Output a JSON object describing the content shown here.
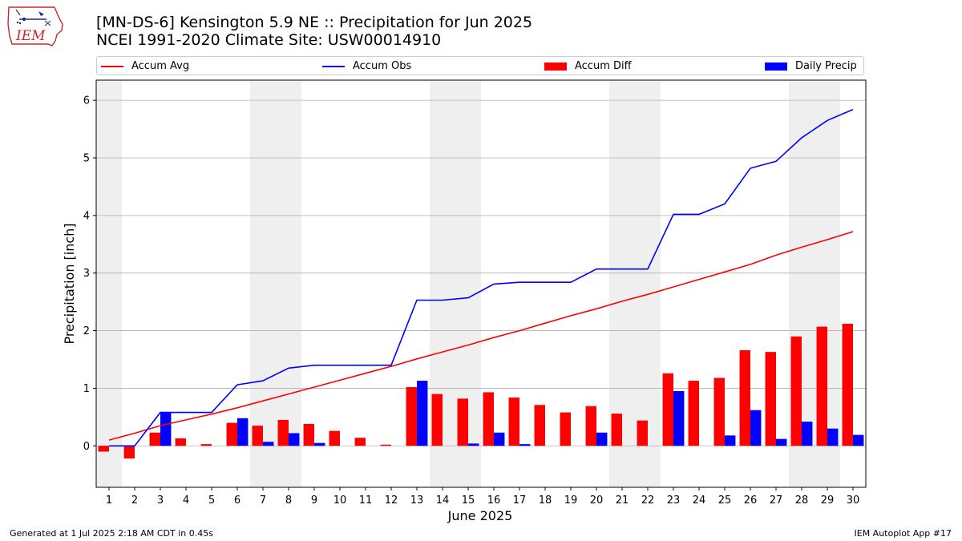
{
  "header": {
    "title_line1": "[MN-DS-6] Kensington 5.9 NE :: Precipitation for Jun 2025",
    "title_line2": "NCEI 1991-2020 Climate Site: USW00014910",
    "logo_text": "IEM"
  },
  "footer": {
    "generated": "Generated at 1 Jul 2025 2:18 AM CDT in 0.45s",
    "app": "IEM Autoplot App #17"
  },
  "legend": {
    "items": [
      {
        "label": "Accum Avg",
        "kind": "line",
        "color": "#ff0000"
      },
      {
        "label": "Accum Obs",
        "kind": "line",
        "color": "#0000ff"
      },
      {
        "label": "Accum Diff",
        "kind": "bar",
        "color": "#ff0000"
      },
      {
        "label": "Daily Precip",
        "kind": "bar",
        "color": "#0000ff"
      }
    ],
    "placement": "top, above plot"
  },
  "chart_data": {
    "type": "bar",
    "xlabel": "June 2025",
    "ylabel": "Precipitation [inch]",
    "xlim": [
      0.5,
      30.5
    ],
    "ylim": [
      -0.72,
      6.35
    ],
    "yticks": [
      0,
      1,
      2,
      3,
      4,
      5,
      6
    ],
    "categories": [
      "1",
      "2",
      "3",
      "4",
      "5",
      "6",
      "7",
      "8",
      "9",
      "10",
      "11",
      "12",
      "13",
      "14",
      "15",
      "16",
      "17",
      "18",
      "19",
      "20",
      "21",
      "22",
      "23",
      "24",
      "25",
      "26",
      "27",
      "28",
      "29",
      "30"
    ],
    "grid": "horizontal",
    "weekend_shading": [
      [
        0.5,
        1.5
      ],
      [
        6.5,
        8.5
      ],
      [
        13.5,
        15.5
      ],
      [
        20.5,
        22.5
      ],
      [
        27.5,
        29.5
      ]
    ],
    "colors": {
      "avg": "#ff0000",
      "obs": "#0000ff",
      "diff": "#ff0000",
      "daily": "#0000ff",
      "shade": "#efefef",
      "grid": "#b0b0b0"
    },
    "series": [
      {
        "name": "Accum Avg",
        "kind": "line",
        "values": [
          0.1,
          0.22,
          0.35,
          0.45,
          0.55,
          0.66,
          0.78,
          0.9,
          1.02,
          1.14,
          1.26,
          1.38,
          1.51,
          1.63,
          1.75,
          1.88,
          2.0,
          2.13,
          2.26,
          2.38,
          2.51,
          2.63,
          2.76,
          2.89,
          3.02,
          3.15,
          3.31,
          3.45,
          3.58,
          3.72
        ]
      },
      {
        "name": "Accum Obs",
        "kind": "line",
        "values": [
          0.0,
          0.0,
          0.58,
          0.58,
          0.58,
          1.06,
          1.13,
          1.35,
          1.4,
          1.4,
          1.4,
          1.4,
          2.53,
          2.53,
          2.57,
          2.81,
          2.84,
          2.84,
          2.84,
          3.07,
          3.07,
          3.07,
          4.02,
          4.02,
          4.2,
          4.82,
          4.94,
          5.35,
          5.65,
          5.84
        ]
      },
      {
        "name": "Accum Diff",
        "kind": "bar",
        "values": [
          -0.1,
          -0.22,
          0.23,
          0.13,
          0.03,
          0.4,
          0.35,
          0.45,
          0.38,
          0.26,
          0.14,
          0.02,
          1.02,
          0.9,
          0.82,
          0.93,
          0.84,
          0.71,
          0.58,
          0.69,
          0.56,
          0.44,
          1.26,
          1.13,
          1.18,
          1.66,
          1.63,
          1.9,
          2.07,
          2.12
        ]
      },
      {
        "name": "Daily Precip",
        "kind": "bar",
        "values": [
          0.0,
          0.0,
          0.58,
          0.0,
          0.0,
          0.48,
          0.07,
          0.22,
          0.05,
          0.0,
          0.0,
          0.0,
          1.13,
          0.0,
          0.04,
          0.23,
          0.03,
          0.0,
          0.0,
          0.23,
          0.0,
          0.0,
          0.95,
          0.0,
          0.18,
          0.62,
          0.12,
          0.42,
          0.3,
          0.19
        ]
      }
    ]
  }
}
